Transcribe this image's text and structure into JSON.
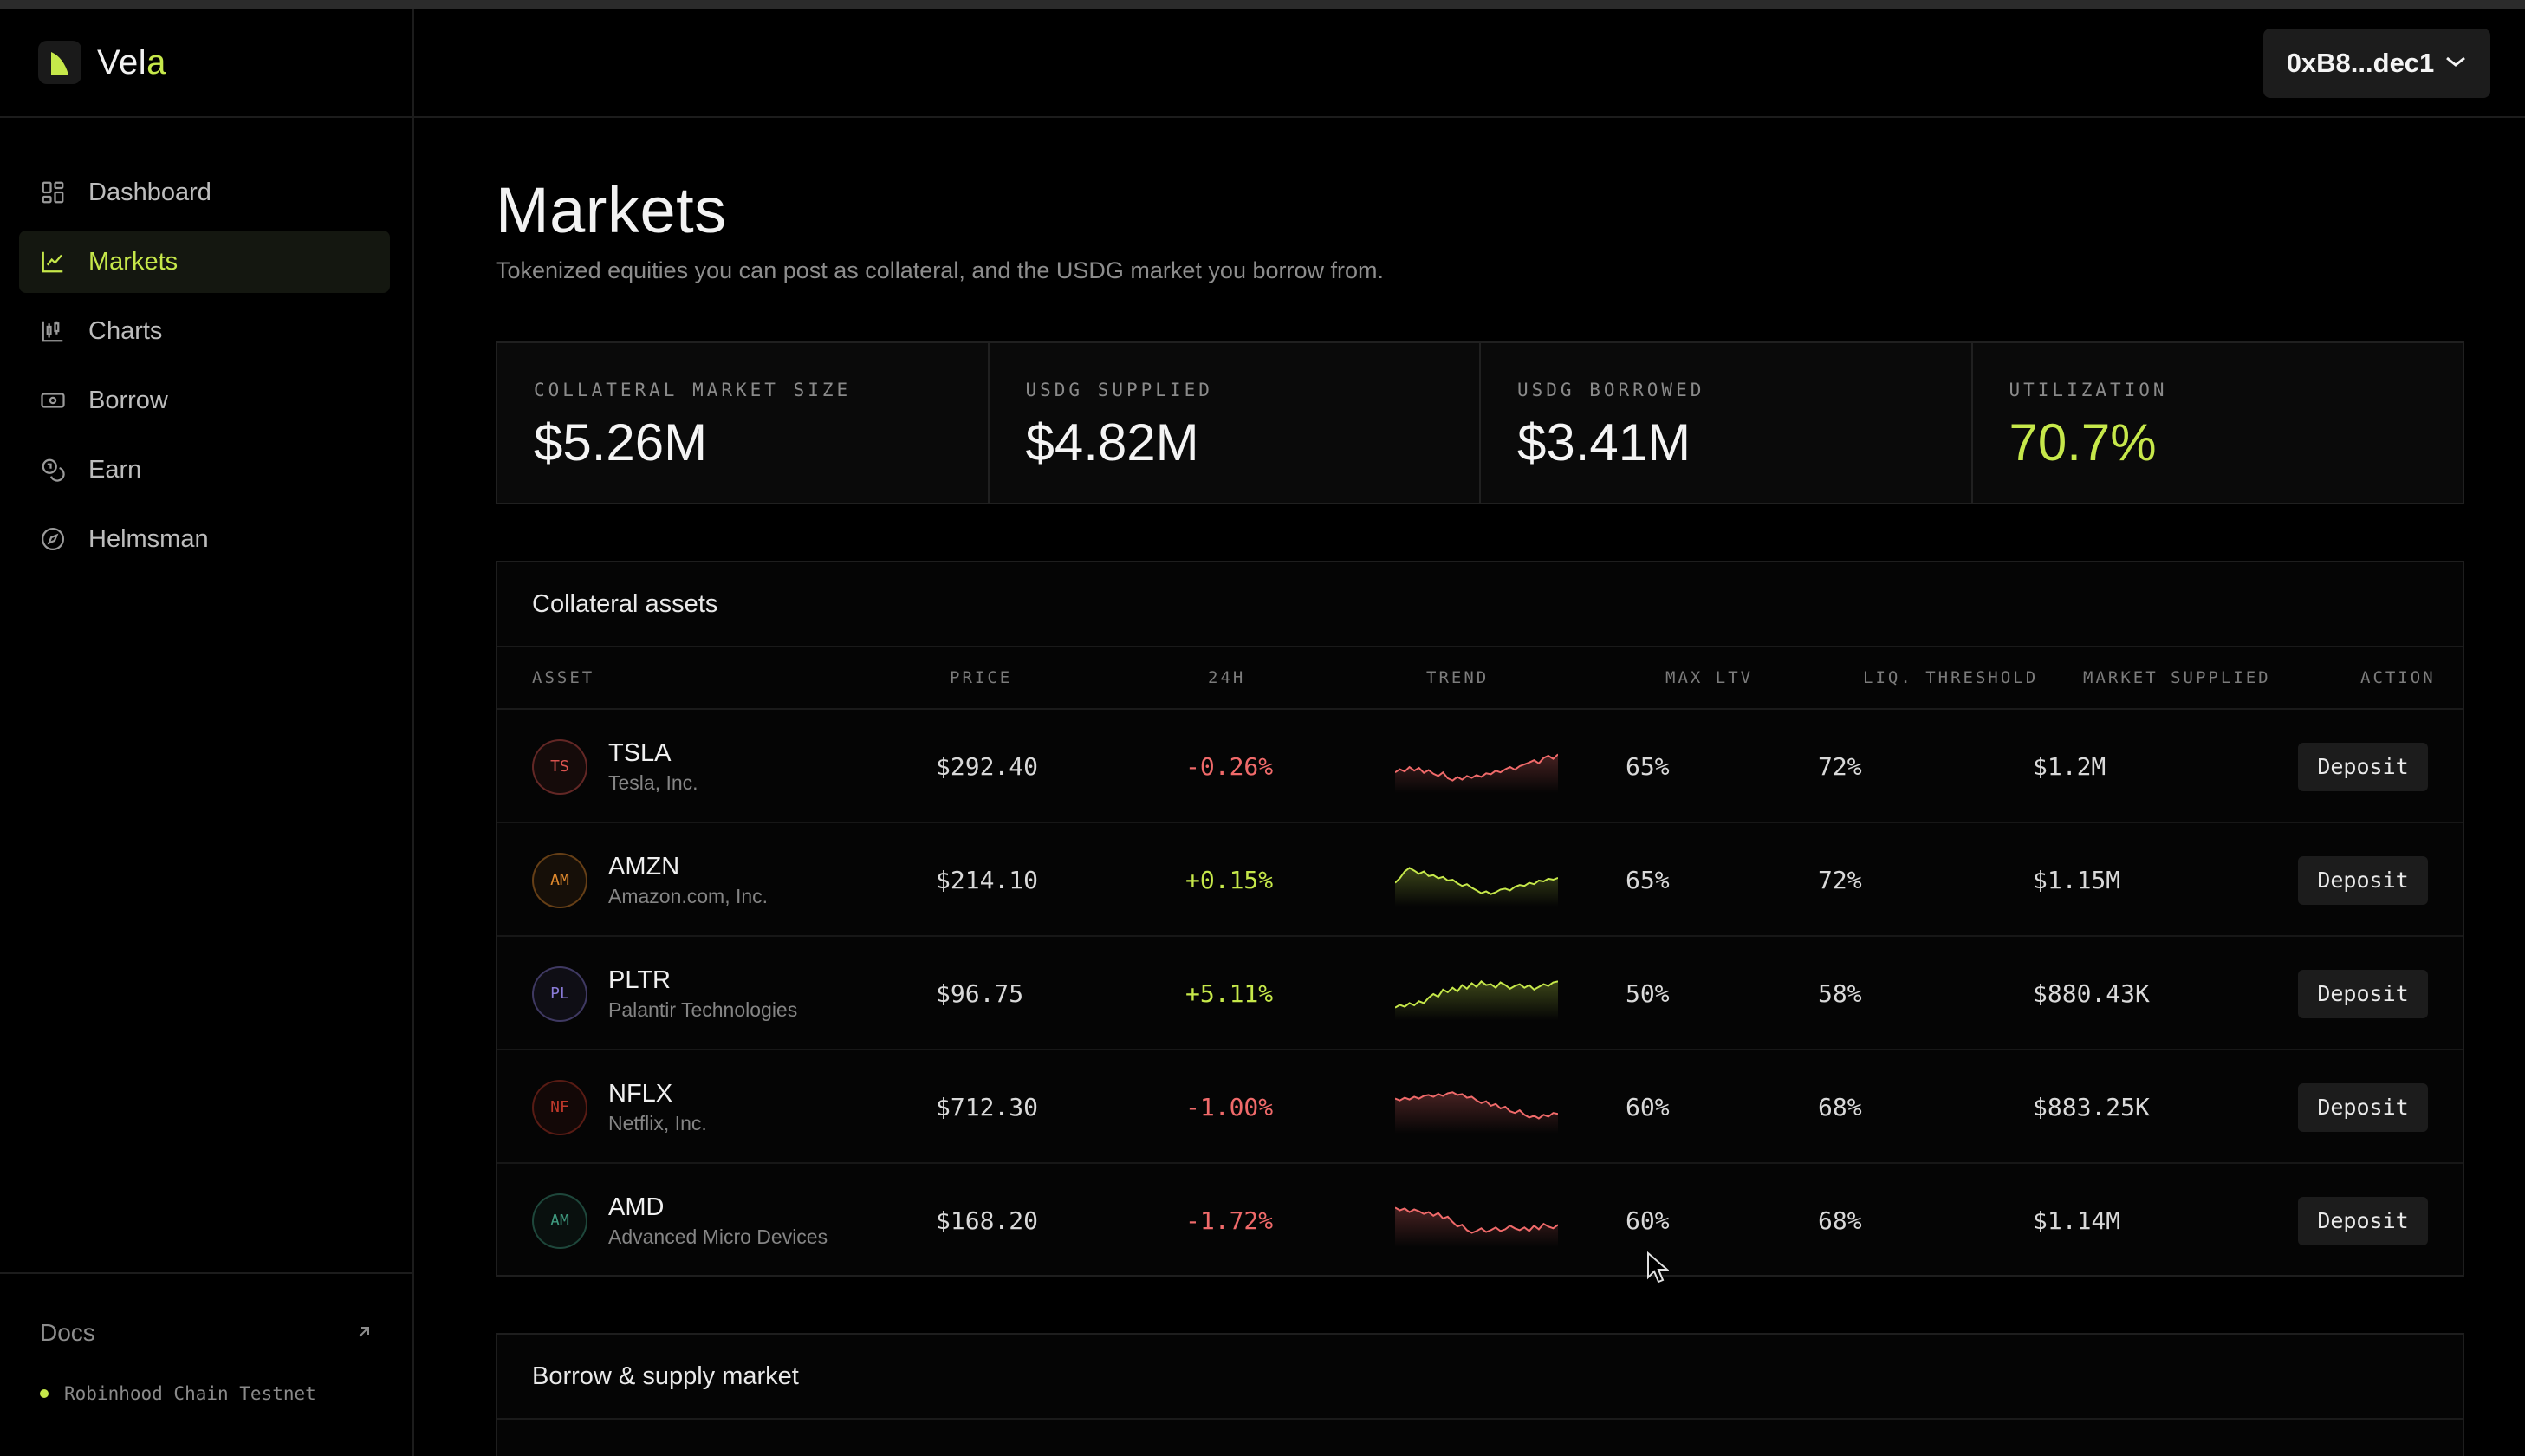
{
  "brand": {
    "name_prefix": "Vel",
    "name_accent": "a"
  },
  "wallet": {
    "address": "0xB8...dec1"
  },
  "sidebar": {
    "items": [
      {
        "label": "Dashboard",
        "icon": "dashboard-grid-icon"
      },
      {
        "label": "Markets",
        "icon": "line-chart-icon",
        "active": true
      },
      {
        "label": "Charts",
        "icon": "candlestick-chart-icon"
      },
      {
        "label": "Borrow",
        "icon": "banknote-icon"
      },
      {
        "label": "Earn",
        "icon": "coins-icon"
      },
      {
        "label": "Helmsman",
        "icon": "compass-icon"
      }
    ],
    "docs_label": "Docs",
    "network": "Robinhood Chain Testnet"
  },
  "page": {
    "title": "Markets",
    "subtitle": "Tokenized equities you can post as collateral, and the USDG market you borrow from."
  },
  "stats": [
    {
      "label": "COLLATERAL MARKET SIZE",
      "value": "$5.26M"
    },
    {
      "label": "USDG SUPPLIED",
      "value": "$4.82M"
    },
    {
      "label": "USDG BORROWED",
      "value": "$3.41M"
    },
    {
      "label": "UTILIZATION",
      "value": "70.7%",
      "color": "#c6e84a"
    }
  ],
  "collateral": {
    "title": "Collateral assets",
    "columns": [
      "ASSET",
      "PRICE",
      "24H",
      "TREND",
      "MAX LTV",
      "LIQ. THRESHOLD",
      "MARKET SUPPLIED",
      "ACTION"
    ],
    "rows": [
      {
        "initials": "TS",
        "symbol": "TSLA",
        "name": "Tesla, Inc.",
        "price": "$292.40",
        "change": "-0.26%",
        "dir": "neg",
        "ltv": "65%",
        "liq": "72%",
        "supplied": "$1.2M",
        "action": "Deposit",
        "avatar_color": "#d9534f",
        "trend": [
          0.62,
          0.55,
          0.6,
          0.5,
          0.58,
          0.52,
          0.63,
          0.57,
          0.65,
          0.7,
          0.62,
          0.75,
          0.8,
          0.72,
          0.78,
          0.7,
          0.74,
          0.68,
          0.72,
          0.64,
          0.66,
          0.58,
          0.62,
          0.55,
          0.5,
          0.56,
          0.48,
          0.44,
          0.4,
          0.35,
          0.42,
          0.3,
          0.25,
          0.32,
          0.22
        ]
      },
      {
        "initials": "AM",
        "symbol": "AMZN",
        "name": "Amazon.com, Inc.",
        "price": "$214.10",
        "change": "+0.15%",
        "dir": "pos",
        "ltv": "65%",
        "liq": "72%",
        "supplied": "$1.15M",
        "action": "Deposit",
        "avatar_color": "#e08a2e",
        "trend": [
          0.55,
          0.45,
          0.3,
          0.22,
          0.28,
          0.35,
          0.3,
          0.4,
          0.38,
          0.45,
          0.42,
          0.5,
          0.48,
          0.56,
          0.62,
          0.58,
          0.66,
          0.72,
          0.78,
          0.74,
          0.8,
          0.76,
          0.7,
          0.68,
          0.72,
          0.64,
          0.6,
          0.62,
          0.55,
          0.58,
          0.5,
          0.52,
          0.46,
          0.48,
          0.44
        ]
      },
      {
        "initials": "PL",
        "symbol": "PLTR",
        "name": "Palantir Technologies",
        "price": "$96.75",
        "change": "+5.11%",
        "dir": "pos",
        "ltv": "50%",
        "liq": "58%",
        "supplied": "$880.43K",
        "action": "Deposit",
        "avatar_color": "#8a7bd8",
        "trend": [
          0.8,
          0.74,
          0.78,
          0.7,
          0.75,
          0.66,
          0.7,
          0.58,
          0.5,
          0.56,
          0.4,
          0.46,
          0.36,
          0.44,
          0.3,
          0.38,
          0.26,
          0.34,
          0.22,
          0.3,
          0.28,
          0.36,
          0.24,
          0.3,
          0.38,
          0.32,
          0.28,
          0.36,
          0.3,
          0.4,
          0.34,
          0.28,
          0.32,
          0.24,
          0.22
        ]
      },
      {
        "initials": "NF",
        "symbol": "NFLX",
        "name": "Netflix, Inc.",
        "price": "$712.30",
        "change": "-1.00%",
        "dir": "neg",
        "ltv": "60%",
        "liq": "68%",
        "supplied": "$883.25K",
        "action": "Deposit",
        "avatar_color": "#c0392b",
        "trend": [
          0.3,
          0.34,
          0.28,
          0.32,
          0.26,
          0.3,
          0.24,
          0.22,
          0.26,
          0.2,
          0.24,
          0.18,
          0.16,
          0.22,
          0.2,
          0.28,
          0.26,
          0.34,
          0.4,
          0.36,
          0.46,
          0.42,
          0.52,
          0.48,
          0.58,
          0.62,
          0.56,
          0.66,
          0.72,
          0.68,
          0.74,
          0.66,
          0.7,
          0.62,
          0.64
        ]
      },
      {
        "initials": "AM",
        "symbol": "AMD",
        "name": "Advanced Micro Devices",
        "price": "$168.20",
        "change": "-1.72%",
        "dir": "neg",
        "ltv": "60%",
        "liq": "68%",
        "supplied": "$1.14M",
        "action": "Deposit",
        "avatar_color": "#3f9a7f",
        "trend": [
          0.2,
          0.26,
          0.22,
          0.3,
          0.24,
          0.28,
          0.34,
          0.3,
          0.38,
          0.32,
          0.44,
          0.4,
          0.52,
          0.62,
          0.58,
          0.7,
          0.76,
          0.72,
          0.66,
          0.74,
          0.7,
          0.64,
          0.72,
          0.68,
          0.6,
          0.66,
          0.7,
          0.64,
          0.72,
          0.6,
          0.68,
          0.56,
          0.62,
          0.66,
          0.58
        ]
      }
    ]
  },
  "borrow_supply": {
    "title": "Borrow & supply market"
  },
  "colors": {
    "accent": "#c6e84a",
    "negative": "#f06a6a",
    "background": "#000000"
  }
}
